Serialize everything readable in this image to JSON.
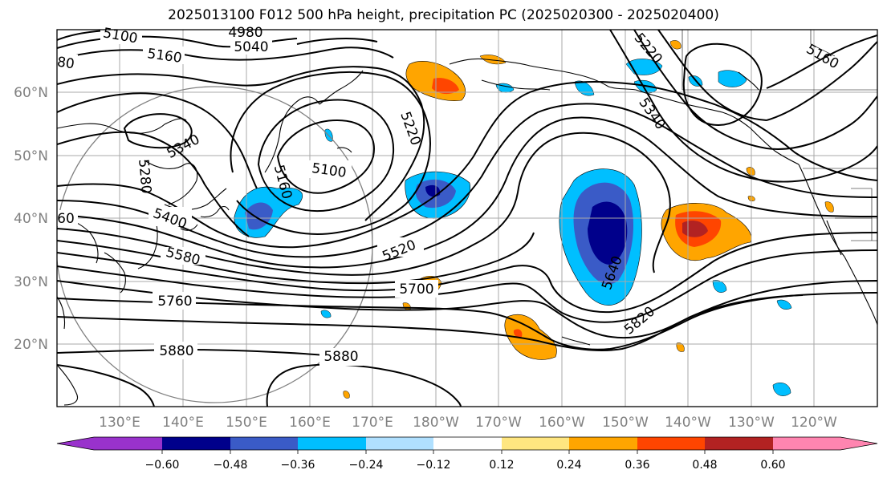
{
  "title": "2025013100 F012 500 hPa height, precipitation PC (2025020300 - 2025020400)",
  "lat_labels": [
    "60°N",
    "50°N",
    "40°N",
    "30°N",
    "20°N"
  ],
  "lon_labels": [
    "130°E",
    "140°E",
    "150°E",
    "160°E",
    "170°E",
    "180°W",
    "170°W",
    "160°W",
    "150°W",
    "140°W",
    "130°W",
    "120°W"
  ],
  "contour_labels": [
    "5100",
    "4980",
    "5040",
    "5160",
    "5220",
    "5340",
    "5280",
    "5160",
    "5100",
    "5220",
    "5340",
    "5160",
    "5400",
    "5580",
    "5520",
    "5640",
    "5700",
    "5760",
    "5820",
    "5880",
    "5880",
    "80",
    "60"
  ],
  "colorbar": {
    "ticks": [
      "−0.60",
      "−0.48",
      "−0.36",
      "−0.24",
      "−0.12",
      "0.12",
      "0.24",
      "0.36",
      "0.48",
      "0.60"
    ],
    "colors": [
      "#9932cc",
      "#00008b",
      "#3a5bc7",
      "#00bfff",
      "#b0e0ff",
      "#ffffff",
      "#ffe680",
      "#ffa500",
      "#ff4500",
      "#b22222",
      "#ff85b0"
    ]
  }
}
